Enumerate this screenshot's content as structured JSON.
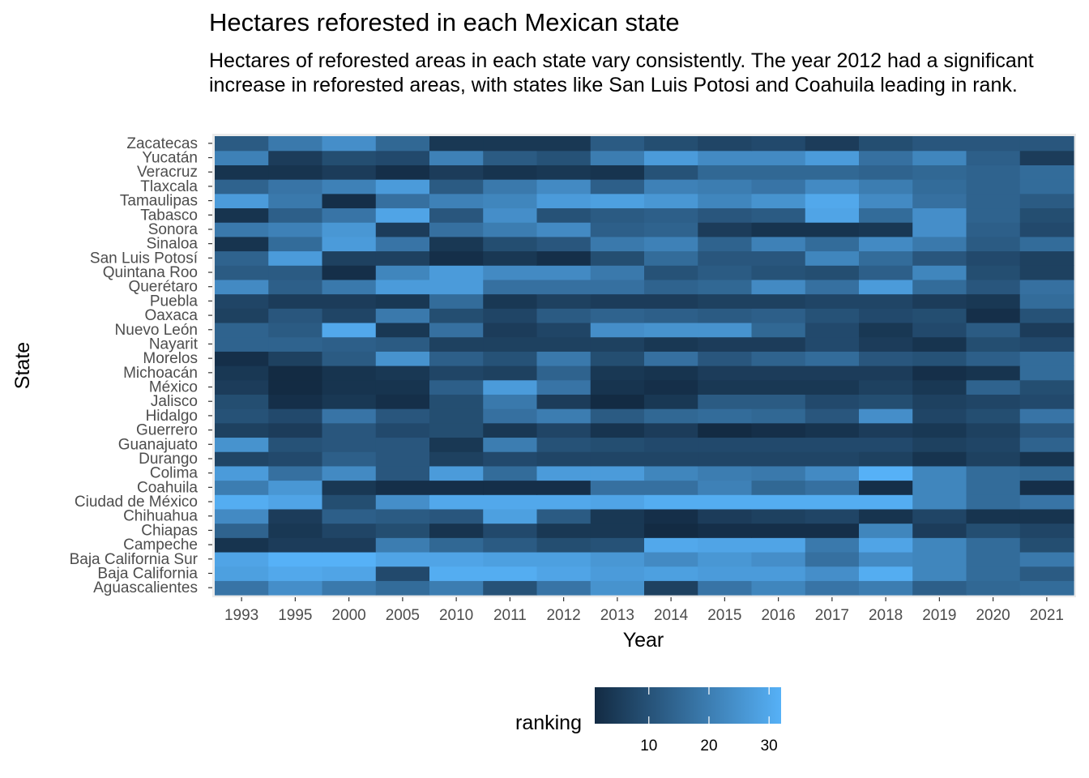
{
  "chart_data": {
    "type": "heatmap",
    "title": "Hectares reforested in each Mexican state",
    "subtitle": "Hectares of reforested areas in each state vary consistently. The year 2012 had a significant increase in reforested areas, with states like San Luis Potosi and Coahuila leading in rank.",
    "xlabel": "Year",
    "ylabel": "State",
    "legend_title": "ranking",
    "legend_position": "bottom",
    "legend_ticks": [
      "10",
      "20",
      "30"
    ],
    "color_low": "#132B43",
    "color_high": "#56B1F7",
    "value_range": [
      1,
      32
    ],
    "x": [
      "1993",
      "1995",
      "2000",
      "2005",
      "2010",
      "2011",
      "2012",
      "2013",
      "2014",
      "2015",
      "2016",
      "2017",
      "2018",
      "2019",
      "2020",
      "2021"
    ],
    "y": [
      "Aguascalientes",
      "Baja California",
      "Baja California Sur",
      "Campeche",
      "Chiapas",
      "Chihuahua",
      "Ciudad de México",
      "Coahuila",
      "Colima",
      "Durango",
      "Guanajuato",
      "Guerrero",
      "Hidalgo",
      "Jalisco",
      "México",
      "Michoacán",
      "Morelos",
      "Nayarit",
      "Nuevo León",
      "Oaxaca",
      "Puebla",
      "Querétaro",
      "Quintana Roo",
      "San Luis Potosí",
      "Sinaloa",
      "Sonora",
      "Tabasco",
      "Tamaulipas",
      "Tlaxcala",
      "Veracruz",
      "Yucatán",
      "Zacatecas"
    ],
    "values": [
      [
        18,
        24,
        19,
        16,
        20,
        10,
        18,
        25,
        6,
        18,
        22,
        18,
        20,
        13,
        15,
        16
      ],
      [
        28,
        30,
        29,
        8,
        31,
        31,
        29,
        27,
        28,
        27,
        27,
        24,
        31,
        22,
        16,
        12
      ],
      [
        29,
        32,
        32,
        29,
        29,
        28,
        28,
        26,
        23,
        26,
        24,
        17,
        23,
        22,
        16,
        19
      ],
      [
        3,
        5,
        5,
        20,
        15,
        12,
        9,
        10,
        30,
        29,
        29,
        19,
        29,
        22,
        16,
        9
      ],
      [
        14,
        4,
        7,
        9,
        3,
        8,
        4,
        4,
        1,
        2,
        2,
        2,
        22,
        5,
        9,
        7
      ],
      [
        23,
        5,
        13,
        12,
        11,
        28,
        12,
        4,
        2,
        5,
        6,
        7,
        3,
        7,
        3,
        3
      ],
      [
        31,
        29,
        9,
        24,
        30,
        30,
        30,
        29,
        31,
        31,
        31,
        31,
        31,
        22,
        16,
        18
      ],
      [
        20,
        26,
        4,
        2,
        2,
        2,
        2,
        17,
        17,
        21,
        15,
        17,
        2,
        22,
        16,
        2
      ],
      [
        27,
        17,
        23,
        11,
        27,
        16,
        27,
        27,
        22,
        20,
        19,
        23,
        32,
        22,
        16,
        15
      ],
      [
        7,
        8,
        13,
        11,
        6,
        8,
        7,
        7,
        7,
        7,
        7,
        7,
        6,
        3,
        6,
        3
      ],
      [
        25,
        10,
        11,
        11,
        4,
        20,
        10,
        9,
        8,
        8,
        8,
        8,
        8,
        6,
        7,
        14
      ],
      [
        6,
        5,
        11,
        8,
        9,
        4,
        7,
        3,
        5,
        1,
        2,
        3,
        5,
        4,
        6,
        11
      ],
      [
        10,
        8,
        18,
        11,
        9,
        17,
        20,
        12,
        15,
        16,
        15,
        11,
        24,
        7,
        9,
        18
      ],
      [
        9,
        2,
        4,
        2,
        9,
        19,
        5,
        1,
        4,
        12,
        12,
        8,
        9,
        6,
        7,
        8
      ],
      [
        5,
        1,
        3,
        3,
        13,
        27,
        18,
        3,
        2,
        4,
        4,
        4,
        6,
        4,
        14,
        9
      ],
      [
        4,
        1,
        3,
        4,
        7,
        6,
        14,
        4,
        3,
        5,
        5,
        5,
        5,
        2,
        3,
        16
      ],
      [
        2,
        6,
        12,
        25,
        13,
        10,
        19,
        9,
        17,
        11,
        14,
        16,
        11,
        10,
        13,
        16
      ],
      [
        14,
        14,
        13,
        12,
        6,
        6,
        6,
        6,
        4,
        5,
        5,
        8,
        5,
        3,
        9,
        8
      ],
      [
        14,
        12,
        30,
        4,
        17,
        5,
        7,
        24,
        25,
        25,
        15,
        8,
        4,
        8,
        12,
        5
      ],
      [
        6,
        11,
        7,
        19,
        9,
        7,
        12,
        14,
        13,
        12,
        13,
        10,
        8,
        9,
        2,
        10
      ],
      [
        7,
        5,
        5,
        4,
        16,
        4,
        6,
        5,
        5,
        6,
        6,
        7,
        7,
        5,
        4,
        16
      ],
      [
        23,
        13,
        19,
        27,
        27,
        17,
        17,
        17,
        14,
        15,
        23,
        17,
        27,
        16,
        11,
        17
      ],
      [
        12,
        12,
        2,
        22,
        27,
        23,
        23,
        19,
        10,
        12,
        10,
        9,
        13,
        22,
        9,
        6
      ],
      [
        14,
        27,
        6,
        6,
        2,
        4,
        2,
        9,
        16,
        11,
        11,
        22,
        16,
        11,
        8,
        6
      ],
      [
        3,
        16,
        27,
        18,
        4,
        9,
        11,
        19,
        21,
        14,
        21,
        16,
        23,
        19,
        12,
        16
      ],
      [
        19,
        21,
        26,
        5,
        17,
        20,
        23,
        13,
        14,
        5,
        3,
        3,
        4,
        24,
        13,
        8
      ],
      [
        3,
        13,
        18,
        29,
        11,
        24,
        10,
        12,
        13,
        11,
        12,
        29,
        16,
        24,
        14,
        9
      ],
      [
        27,
        19,
        2,
        17,
        21,
        22,
        27,
        28,
        26,
        22,
        25,
        30,
        23,
        17,
        14,
        12
      ],
      [
        14,
        18,
        21,
        27,
        12,
        19,
        23,
        13,
        21,
        20,
        18,
        23,
        20,
        16,
        14,
        16
      ],
      [
        3,
        3,
        5,
        2,
        5,
        3,
        4,
        3,
        10,
        15,
        15,
        15,
        14,
        15,
        14,
        16
      ],
      [
        21,
        5,
        9,
        8,
        21,
        12,
        10,
        20,
        27,
        23,
        23,
        27,
        17,
        22,
        13,
        5
      ],
      [
        12,
        19,
        24,
        15,
        4,
        4,
        4,
        12,
        9,
        7,
        8,
        5,
        9,
        11,
        11,
        11
      ]
    ]
  }
}
